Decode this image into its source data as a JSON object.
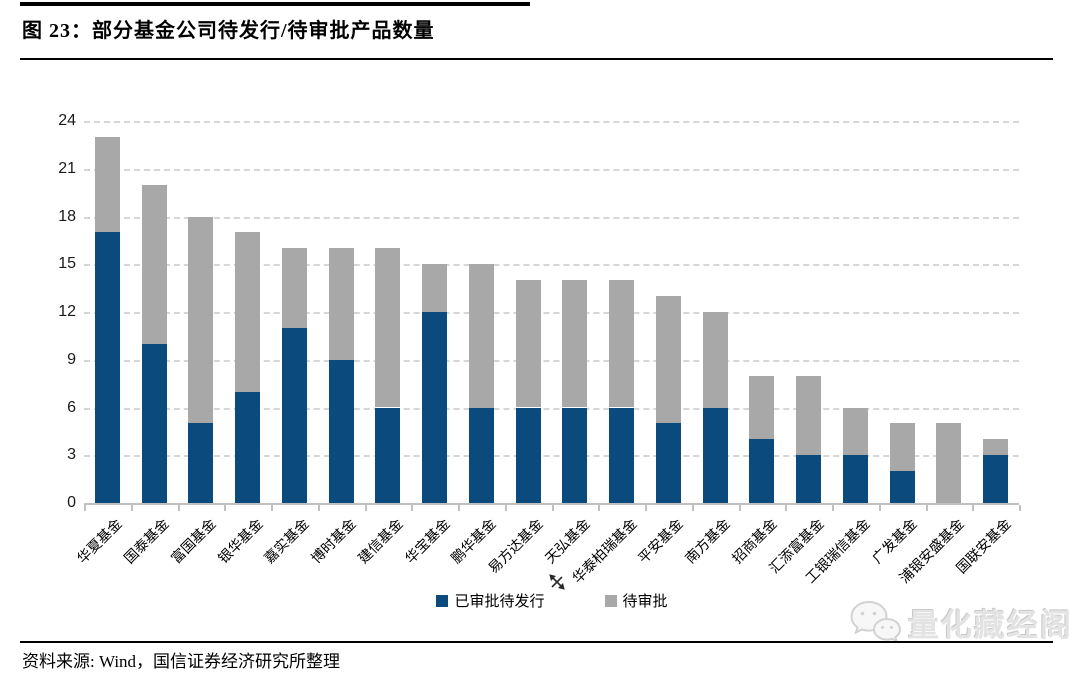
{
  "figure": {
    "label": "图 23：",
    "title": "部分基金公司待发行/待审批产品数量"
  },
  "chart_data": {
    "type": "bar",
    "stacked": true,
    "title": "部分基金公司待发行/待审批产品数量",
    "categories": [
      "华夏基金",
      "国泰基金",
      "富国基金",
      "银华基金",
      "嘉实基金",
      "博时基金",
      "建信基金",
      "华宝基金",
      "鹏华基金",
      "易方达基金",
      "天弘基金",
      "华泰柏瑞基金",
      "平安基金",
      "南方基金",
      "招商基金",
      "汇添富基金",
      "工银瑞信基金",
      "广发基金",
      "浦银安盛基金",
      "国联安基金"
    ],
    "series": [
      {
        "name": "已审批待发行",
        "color": "#0a4a7d",
        "values": [
          17,
          10,
          5,
          7,
          11,
          9,
          6,
          12,
          6,
          6,
          6,
          6,
          5,
          6,
          4,
          3,
          3,
          2,
          0,
          3
        ]
      },
      {
        "name": "待审批",
        "color": "#a8a8a8",
        "values": [
          6,
          10,
          13,
          10,
          5,
          7,
          10,
          3,
          9,
          8,
          8,
          8,
          8,
          6,
          4,
          5,
          3,
          3,
          5,
          1
        ]
      }
    ],
    "totals": [
      23,
      20,
      18,
      17,
      16,
      16,
      16,
      15,
      15,
      14,
      14,
      14,
      13,
      12,
      8,
      8,
      6,
      5,
      5,
      4
    ],
    "xlabel": "",
    "ylabel": "",
    "ylim": [
      0,
      24
    ],
    "yticks": [
      0,
      3,
      6,
      9,
      12,
      15,
      18,
      21,
      24
    ],
    "grid": "horizontal-dashed",
    "legend_position": "bottom-center"
  },
  "footer": {
    "source": "资料来源: Wind，国信证券经济研究所整理"
  },
  "watermark": {
    "text": "量化藏经阁",
    "icon": "wechat-chat-bubbles-icon"
  },
  "colors": {
    "approved": "#0a4a7d",
    "pending": "#a8a8a8",
    "gridline": "#d6d6d6",
    "axis": "#c0c0c0",
    "rule": "#000000"
  }
}
